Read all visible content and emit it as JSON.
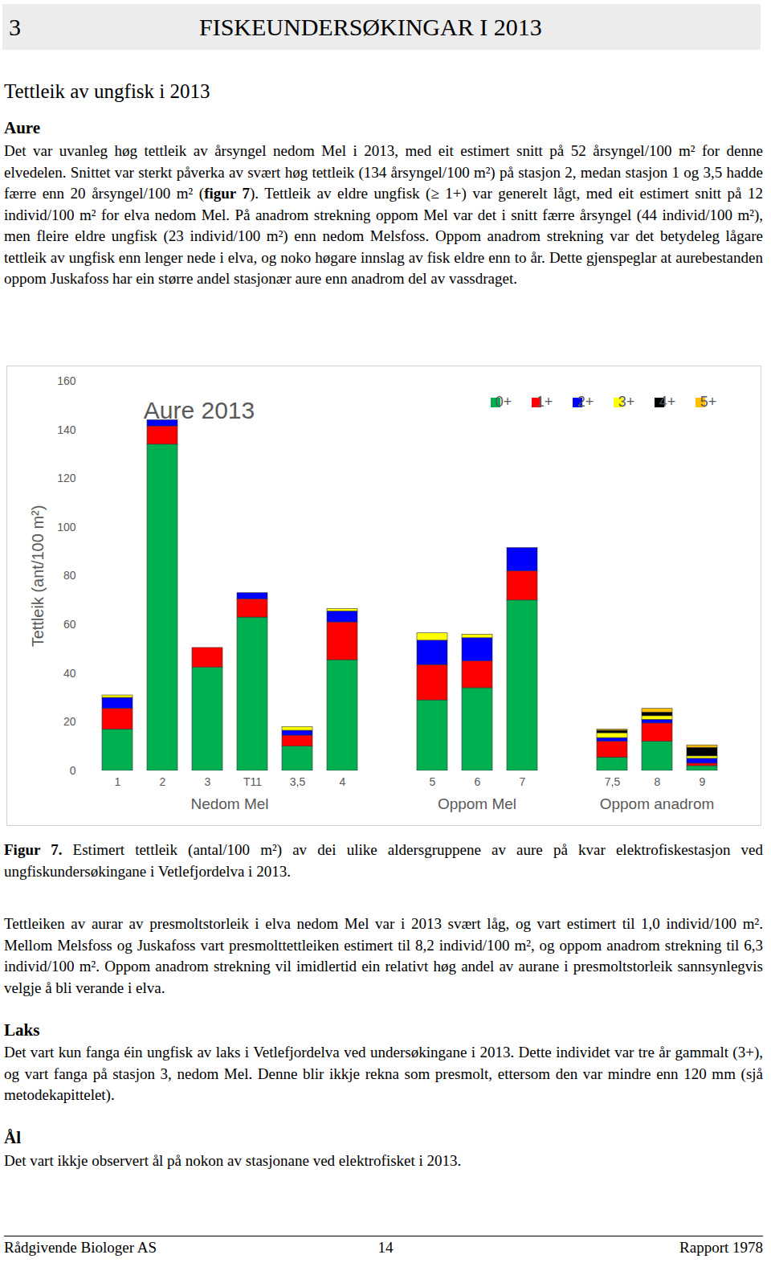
{
  "header": {
    "number": "3",
    "title": "FISKEUNDERSØKINGAR I 2013"
  },
  "section_title": "Tettleik av ungfisk i 2013",
  "aure": {
    "heading": "Aure",
    "paragraph": [
      {
        "text": "Det var uvanleg høg tettleik av årsyngel nedom Mel i 2013, med eit estimert snitt på 52 årsyngel/100 m² for denne elvedelen. Snittet var sterkt påverka av svært høg tettleik (134 årsyngel/100 m²) på stasjon 2, medan stasjon 1 og 3,5 hadde færre enn 20 årsyngel/100 m² ("
      },
      {
        "text": "figur 7",
        "bold": true
      },
      {
        "text": "). Tettleik av eldre ungfisk (≥ 1+) var generelt lågt, med eit estimert snitt på 12 individ/100 m² for elva nedom Mel. På anadrom strekning oppom Mel var det i snitt færre årsyngel (44 individ/100 m²), men fleire eldre ungfisk (23 individ/100 m²) enn nedom Melsfoss. Oppom anadrom strekning var det betydeleg lågare tettleik av ungfisk enn lenger nede i elva, og noko høgare innslag av fisk eldre enn to år. Dette gjenspeglar at aurebestanden oppom Juskafoss har ein større andel stasjonær aure enn anadrom del av vassdraget."
      }
    ]
  },
  "chart_data": {
    "type": "bar",
    "stacked": true,
    "title": "Aure 2013",
    "y_label": "Tettleik (ant/100 m²)",
    "categories": [
      "1",
      "2",
      "3",
      "T11",
      "3,5",
      "4",
      null,
      "5",
      "6",
      "7",
      null,
      "7,5",
      "8",
      "9"
    ],
    "groups": [
      {
        "label": "Nedom Mel",
        "categories": [
          "1",
          "2",
          "3",
          "T11",
          "3,5",
          "4"
        ]
      },
      {
        "label": "Oppom Mel",
        "categories": [
          "5",
          "6",
          "7"
        ]
      },
      {
        "label": "Oppom anadrom",
        "categories": [
          "7,5",
          "8",
          "9"
        ]
      }
    ],
    "series": [
      {
        "name": "0+",
        "color": "#00b050",
        "values": [
          17,
          134,
          42.5,
          63,
          10,
          45.5,
          null,
          29,
          34,
          70,
          null,
          5.5,
          12,
          2
        ]
      },
      {
        "name": "1+",
        "color": "#ff0000",
        "values": [
          8.5,
          7.5,
          8,
          7.5,
          4.5,
          15.5,
          null,
          14.5,
          11,
          12,
          null,
          6.5,
          7.5,
          1
        ]
      },
      {
        "name": "2+",
        "color": "#0000ff",
        "values": [
          4.5,
          2.5,
          0,
          2.5,
          2,
          4.5,
          null,
          10,
          9.5,
          9.5,
          null,
          1.5,
          1.5,
          2
        ]
      },
      {
        "name": "3+",
        "color": "#ffff00",
        "values": [
          1,
          0,
          0,
          0,
          1.5,
          1,
          null,
          3,
          1.5,
          0,
          null,
          2,
          1.5,
          1
        ]
      },
      {
        "name": "4+",
        "color": "#000000",
        "values": [
          0,
          0,
          0,
          0,
          0,
          0,
          null,
          0,
          0,
          0,
          null,
          1,
          1.5,
          3.5
        ]
      },
      {
        "name": "5+",
        "color": "#ffc000",
        "values": [
          0,
          0,
          0,
          0,
          0,
          0,
          null,
          0,
          0,
          0,
          null,
          0.5,
          1.5,
          1
        ]
      }
    ],
    "ylim": [
      0,
      160
    ],
    "yticks": [
      0,
      20,
      40,
      60,
      80,
      100,
      120,
      140,
      160
    ],
    "grid": false,
    "legend": "top-right"
  },
  "caption": {
    "label": "Figur 7.",
    "text": "Estimert tettleik (antal/100 m²) av dei ulike aldersgruppene av aure på kvar elektrofiskestasjon ved ungfiskundersøkingane i Vetlefjordelva i 2013."
  },
  "presmolt_paragraph": "Tettleiken av aurar av presmoltstorleik i elva nedom Mel var i 2013 svært låg, og vart estimert til 1,0 individ/100 m². Mellom Melsfoss og Juskafoss vart presmolttettleiken estimert til 8,2 individ/100 m², og oppom anadrom strekning til 6,3 individ/100 m². Oppom anadrom strekning vil imidlertid ein relativt høg andel av aurane i presmoltstorleik sannsynlegvis velgje å bli verande i elva.",
  "laks": {
    "heading": "Laks",
    "paragraph": "Det vart kun fanga éin ungfisk av laks i Vetlefjordelva ved undersøkingane i 2013. Dette individet var tre år gammalt (3+), og vart fanga på stasjon 3, nedom Mel. Denne blir ikkje rekna som presmolt, ettersom den var mindre enn 120 mm (sjå metodekapittelet)."
  },
  "aal": {
    "heading": "Ål",
    "paragraph": "Det vart ikkje observert ål på nokon av stasjonane ved elektrofisket i 2013."
  },
  "footer": {
    "left": "Rådgivende Biologer AS",
    "center": "14",
    "right": "Rapport 1978"
  }
}
